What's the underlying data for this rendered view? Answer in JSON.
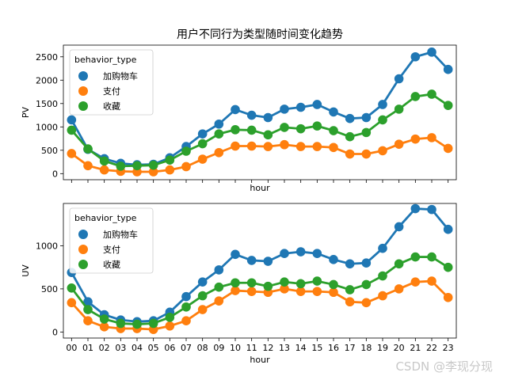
{
  "chart_data": [
    {
      "type": "line",
      "title": "用户不同行为类型随时间变化趋势",
      "xlabel": "hour",
      "ylabel": "PV",
      "categories": [
        "00",
        "01",
        "02",
        "03",
        "04",
        "05",
        "06",
        "07",
        "08",
        "09",
        "10",
        "11",
        "12",
        "13",
        "14",
        "15",
        "16",
        "17",
        "18",
        "19",
        "20",
        "21",
        "22",
        "23"
      ],
      "yticks": [
        0,
        500,
        1000,
        1500,
        2000,
        2500
      ],
      "ylim": [
        -130,
        2750
      ],
      "show_x_tick_labels": false,
      "legend": {
        "title": "behavior_type",
        "position": "top-left"
      },
      "series": [
        {
          "name": "加购物车",
          "color": "#1f77b4",
          "values": [
            1150,
            520,
            320,
            220,
            190,
            200,
            340,
            580,
            850,
            1060,
            1370,
            1250,
            1200,
            1380,
            1420,
            1480,
            1320,
            1180,
            1200,
            1480,
            2030,
            2500,
            2600,
            2230
          ]
        },
        {
          "name": "支付",
          "color": "#ff7f0e",
          "values": [
            430,
            170,
            80,
            50,
            40,
            40,
            80,
            150,
            310,
            450,
            590,
            590,
            580,
            620,
            580,
            580,
            560,
            420,
            420,
            490,
            630,
            740,
            770,
            540
          ]
        },
        {
          "name": "收藏",
          "color": "#2ca02c",
          "values": [
            930,
            530,
            270,
            160,
            170,
            180,
            290,
            480,
            640,
            850,
            940,
            930,
            830,
            990,
            960,
            1020,
            920,
            790,
            880,
            1150,
            1380,
            1650,
            1700,
            1460
          ]
        }
      ]
    },
    {
      "type": "line",
      "title": "",
      "xlabel": "hour",
      "ylabel": "UV",
      "categories": [
        "00",
        "01",
        "02",
        "03",
        "04",
        "05",
        "06",
        "07",
        "08",
        "09",
        "10",
        "11",
        "12",
        "13",
        "14",
        "15",
        "16",
        "17",
        "18",
        "19",
        "20",
        "21",
        "22",
        "23"
      ],
      "yticks": [
        0,
        500,
        1000
      ],
      "ylim": [
        -70,
        1490
      ],
      "show_x_tick_labels": true,
      "legend": {
        "title": "behavior_type",
        "position": "top-left"
      },
      "series": [
        {
          "name": "加购物车",
          "color": "#1f77b4",
          "values": [
            690,
            350,
            200,
            140,
            120,
            130,
            230,
            410,
            580,
            720,
            900,
            830,
            820,
            910,
            930,
            910,
            840,
            790,
            800,
            970,
            1220,
            1430,
            1420,
            1190
          ]
        },
        {
          "name": "支付",
          "color": "#ff7f0e",
          "values": [
            340,
            130,
            60,
            40,
            40,
            30,
            70,
            130,
            260,
            360,
            480,
            470,
            460,
            500,
            470,
            470,
            460,
            350,
            340,
            420,
            500,
            580,
            590,
            400
          ]
        },
        {
          "name": "收藏",
          "color": "#2ca02c",
          "values": [
            510,
            260,
            150,
            100,
            90,
            100,
            170,
            290,
            420,
            520,
            570,
            570,
            530,
            580,
            560,
            590,
            550,
            490,
            550,
            650,
            790,
            870,
            870,
            750
          ]
        }
      ]
    }
  ],
  "watermark": "CSDN @李现分现"
}
